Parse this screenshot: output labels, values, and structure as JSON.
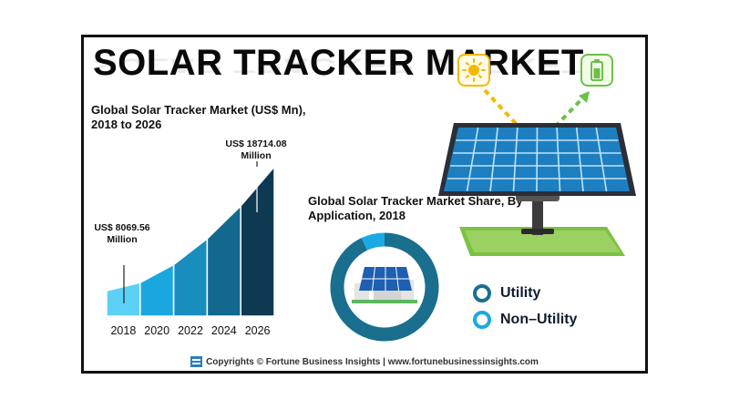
{
  "title": "SOLAR TRACKER MARKET",
  "chart_data": [
    {
      "type": "bar",
      "title": "Global Solar Tracker Market (US$ Mn), 2018 to 2026",
      "categories": [
        "2018",
        "2020",
        "2022",
        "2024",
        "2026"
      ],
      "values": [
        8069.56,
        null,
        null,
        null,
        18714.08
      ],
      "annotations": [
        {
          "category": "2018",
          "text": "US$ 8069.56 Million"
        },
        {
          "category": "2026",
          "text": "US$ 18714.08 Million"
        }
      ],
      "colors": [
        "#5dd0f5",
        "#1aa7df",
        "#1a8dbf",
        "#12688f",
        "#0d3a52"
      ],
      "grid": false
    },
    {
      "type": "pie",
      "title": "Global Solar Tracker Market Share, By Application, 2018",
      "labels": [
        "Utility",
        "Non–Utility"
      ],
      "values": [
        93,
        7
      ],
      "colors": [
        "#1a6e8e",
        "#1aa9e3"
      ],
      "legend": "right"
    }
  ],
  "legend": [
    {
      "label": "Utility",
      "color": "#1a6e8e"
    },
    {
      "label": "Non–Utility",
      "color": "#1aa9e3"
    }
  ],
  "footer": {
    "text": "Copyrights © Fortune Business Insights | www.fortunebusinessinsights.com"
  }
}
